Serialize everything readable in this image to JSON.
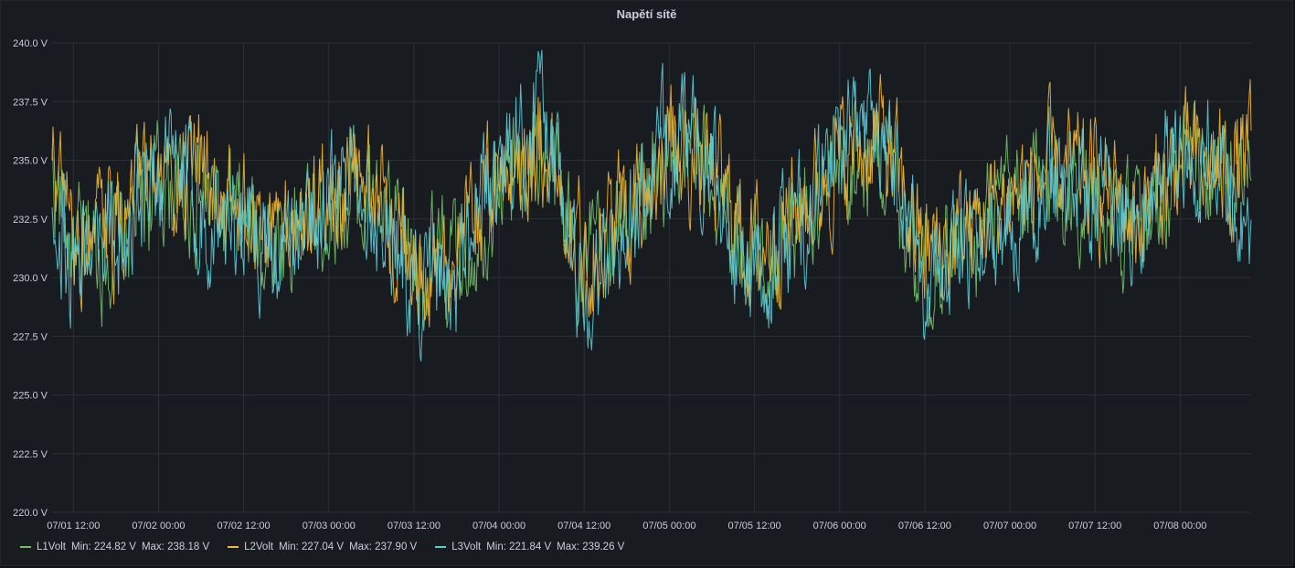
{
  "panel": {
    "title": "Napětí sítě"
  },
  "colors": {
    "L1": "#73bf69",
    "L2": "#f2b632",
    "L3": "#5ccbd8",
    "grid": "#2c2f35",
    "bg": "#181b1f"
  },
  "legend": [
    {
      "name": "L1Volt",
      "min": "Min: 224.82 V",
      "max": "Max: 238.18 V",
      "color": "#73bf69"
    },
    {
      "name": "L2Volt",
      "min": "Min: 227.04 V",
      "max": "Max: 237.90 V",
      "color": "#f2b632"
    },
    {
      "name": "L3Volt",
      "min": "Min: 221.84 V",
      "max": "Max: 239.26 V",
      "color": "#5ccbd8"
    }
  ],
  "chart_data": {
    "type": "line",
    "title": "Napětí sítě",
    "unit": "V",
    "ylim": [
      220,
      240
    ],
    "yticks": [
      "240.0 V",
      "237.5 V",
      "235.0 V",
      "232.5 V",
      "230.0 V",
      "227.5 V",
      "225.0 V",
      "222.5 V",
      "220.0 V"
    ],
    "xlim": [
      "07/01 09:00",
      "07/08 10:00"
    ],
    "xticks": [
      "07/01 12:00",
      "07/02 00:00",
      "07/02 12:00",
      "07/03 00:00",
      "07/03 12:00",
      "07/04 00:00",
      "07/04 12:00",
      "07/05 00:00",
      "07/05 12:00",
      "07/06 00:00",
      "07/06 12:00",
      "07/07 00:00",
      "07/07 12:00",
      "07/08 00:00"
    ],
    "grid": true,
    "legend_position": "bottom-left",
    "x": [
      "07/01 09:00",
      "07/01 12:00",
      "07/01 18:00",
      "07/02 00:00",
      "07/02 06:00",
      "07/02 12:00",
      "07/02 18:00",
      "07/03 00:00",
      "07/03 06:00",
      "07/03 12:00",
      "07/03 18:00",
      "07/04 00:00",
      "07/04 06:00",
      "07/04 12:00",
      "07/04 18:00",
      "07/05 00:00",
      "07/05 06:00",
      "07/05 12:00",
      "07/05 18:00",
      "07/06 00:00",
      "07/06 06:00",
      "07/06 12:00",
      "07/06 18:00",
      "07/07 00:00",
      "07/07 06:00",
      "07/07 12:00",
      "07/07 18:00",
      "07/08 00:00",
      "07/08 06:00",
      "07/08 10:00"
    ],
    "series": [
      {
        "name": "L1Volt",
        "values": [
          234.5,
          231.0,
          231.5,
          234.0,
          233.5,
          232.0,
          231.5,
          233.0,
          233.5,
          230.5,
          230.5,
          234.0,
          235.5,
          230.5,
          232.5,
          235.0,
          234.0,
          230.5,
          232.5,
          234.5,
          235.5,
          230.5,
          231.5,
          233.0,
          234.0,
          233.5,
          232.0,
          234.5,
          234.0,
          234.5
        ]
      },
      {
        "name": "L2Volt",
        "values": [
          235.0,
          231.5,
          232.0,
          234.5,
          234.0,
          232.5,
          232.0,
          233.5,
          234.0,
          231.0,
          231.0,
          234.5,
          236.0,
          231.0,
          233.0,
          235.5,
          234.5,
          231.0,
          233.0,
          235.0,
          236.0,
          231.0,
          232.0,
          233.5,
          234.5,
          234.0,
          232.5,
          235.0,
          234.5,
          235.0
        ]
      },
      {
        "name": "L3Volt",
        "values": [
          234.0,
          230.5,
          231.5,
          235.0,
          233.0,
          232.0,
          231.0,
          234.0,
          233.5,
          229.5,
          230.0,
          235.0,
          237.0,
          229.0,
          232.0,
          236.0,
          234.5,
          229.5,
          232.0,
          235.5,
          237.0,
          230.0,
          231.0,
          233.0,
          234.5,
          234.0,
          232.5,
          235.5,
          235.0,
          232.0
        ]
      }
    ]
  }
}
